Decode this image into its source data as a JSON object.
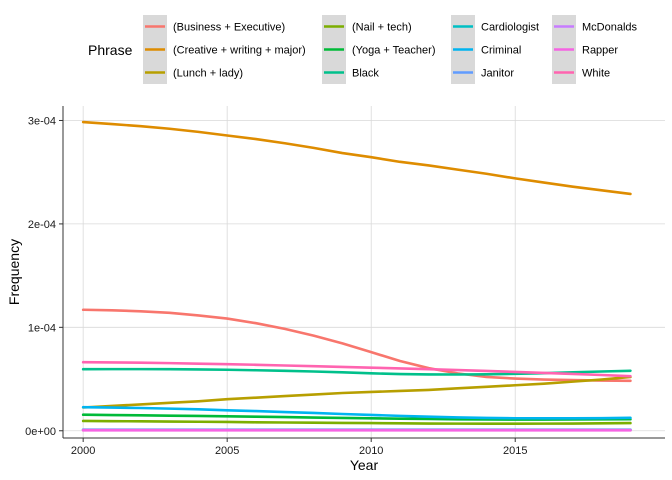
{
  "chart_data": {
    "type": "line",
    "xlabel": "Year",
    "ylabel": "Frequency",
    "legend_title": "Phrase",
    "legend_position": "top",
    "grid": true,
    "xlim": [
      1999.3,
      2020.2
    ],
    "ylim": [
      -7e-06,
      0.000314
    ],
    "x_ticks": [
      2000,
      2005,
      2010,
      2015
    ],
    "x_tick_labels": [
      "2000",
      "2005",
      "2010",
      "2015"
    ],
    "y_ticks": [
      0,
      0.0001,
      0.0002,
      0.0003
    ],
    "y_tick_labels": [
      "0e+00",
      "1e-04",
      "2e-04",
      "3e-04"
    ],
    "x": [
      2000,
      2001,
      2002,
      2003,
      2004,
      2005,
      2006,
      2007,
      2008,
      2009,
      2010,
      2011,
      2012,
      2013,
      2014,
      2015,
      2016,
      2017,
      2018,
      2019
    ],
    "series": [
      {
        "name": "(Business + Executive)",
        "color": "#F8766D",
        "values": [
          0.000117,
          0.0001165,
          0.0001155,
          0.000114,
          0.0001115,
          0.0001085,
          0.000104,
          9.85e-05,
          9.2e-05,
          8.45e-05,
          7.6e-05,
          6.75e-05,
          6.05e-05,
          5.55e-05,
          5.2e-05,
          5.05e-05,
          4.95e-05,
          4.9e-05,
          4.85e-05,
          4.83e-05
        ]
      },
      {
        "name": "(Creative + writing + major)",
        "color": "#DE8C00",
        "values": [
          0.0002985,
          0.0002965,
          0.0002945,
          0.000292,
          0.000289,
          0.0002855,
          0.000282,
          0.000278,
          0.0002735,
          0.0002685,
          0.0002645,
          0.00026,
          0.0002565,
          0.0002525,
          0.0002485,
          0.000244,
          0.00024,
          0.000236,
          0.0002325,
          0.000229
        ]
      },
      {
        "name": "(Lunch + lady)",
        "color": "#B79F00",
        "values": [
          2.25e-05,
          2.4e-05,
          2.55e-05,
          2.7e-05,
          2.85e-05,
          3.05e-05,
          3.2e-05,
          3.35e-05,
          3.5e-05,
          3.65e-05,
          3.75e-05,
          3.85e-05,
          3.95e-05,
          4.1e-05,
          4.25e-05,
          4.4e-05,
          4.55e-05,
          4.75e-05,
          4.95e-05,
          5.2e-05
        ]
      },
      {
        "name": "(Nail + tech)",
        "color": "#7CAE00",
        "values": [
          9.5e-06,
          9.3e-06,
          9.1e-06,
          8.9e-06,
          8.7e-06,
          8.5e-06,
          8.2e-06,
          8e-06,
          7.8e-06,
          7.6e-06,
          7.4e-06,
          7.2e-06,
          7e-06,
          6.9e-06,
          6.8e-06,
          6.8e-06,
          6.9e-06,
          7e-06,
          7.2e-06,
          7.4e-06
        ]
      },
      {
        "name": "(Yoga + Teacher)",
        "color": "#00BA38",
        "values": [
          1.55e-05,
          1.52e-05,
          1.49e-05,
          1.46e-05,
          1.43e-05,
          1.4e-05,
          1.36e-05,
          1.32e-05,
          1.28e-05,
          1.24e-05,
          1.2e-05,
          1.17e-05,
          1.14e-05,
          1.11e-05,
          1.09e-05,
          1.08e-05,
          1.08e-05,
          1.09e-05,
          1.1e-05,
          1.12e-05
        ]
      },
      {
        "name": "Black",
        "color": "#00C08B",
        "values": [
          5.95e-05,
          5.96e-05,
          5.96e-05,
          5.95e-05,
          5.93e-05,
          5.9e-05,
          5.85e-05,
          5.8e-05,
          5.73e-05,
          5.65e-05,
          5.55e-05,
          5.48e-05,
          5.45e-05,
          5.44e-05,
          5.46e-05,
          5.5e-05,
          5.57e-05,
          5.65e-05,
          5.73e-05,
          5.8e-05
        ]
      },
      {
        "name": "Cardiologist",
        "color": "#00BFC4",
        "values": [
          1e-06,
          1e-06,
          1e-06,
          1e-06,
          1e-06,
          1e-06,
          1e-06,
          1e-06,
          1e-06,
          1e-06,
          1e-06,
          1e-06,
          1e-06,
          1e-06,
          1e-06,
          1e-06,
          1e-06,
          1e-06,
          1e-06,
          1e-06
        ]
      },
      {
        "name": "Criminal",
        "color": "#00B4F0",
        "values": [
          2.28e-05,
          2.24e-05,
          2.2e-05,
          2.14e-05,
          2.07e-05,
          1.98e-05,
          1.9e-05,
          1.81e-05,
          1.72e-05,
          1.62e-05,
          1.53e-05,
          1.44e-05,
          1.36e-05,
          1.29e-05,
          1.24e-05,
          1.21e-05,
          1.2e-05,
          1.2e-05,
          1.22e-05,
          1.25e-05
        ]
      },
      {
        "name": "Janitor",
        "color": "#619CFF",
        "values": [
          9e-07,
          9e-07,
          9e-07,
          9e-07,
          9e-07,
          9e-07,
          9e-07,
          9e-07,
          9e-07,
          9e-07,
          9e-07,
          9e-07,
          9e-07,
          9e-07,
          9e-07,
          9e-07,
          9e-07,
          9e-07,
          9e-07,
          9e-07
        ]
      },
      {
        "name": "McDonalds",
        "color": "#C77CFF",
        "values": [
          7e-07,
          7e-07,
          7e-07,
          7e-07,
          7e-07,
          7e-07,
          7e-07,
          7e-07,
          7e-07,
          7e-07,
          7e-07,
          7e-07,
          7e-07,
          7e-07,
          7e-07,
          7e-07,
          7e-07,
          7e-07,
          7e-07,
          7e-07
        ]
      },
      {
        "name": "Rapper",
        "color": "#F564E3",
        "values": [
          4e-07,
          4e-07,
          4e-07,
          4e-07,
          4e-07,
          4e-07,
          4e-07,
          4e-07,
          4e-07,
          4e-07,
          4e-07,
          4e-07,
          4e-07,
          4e-07,
          4e-07,
          4e-07,
          4e-07,
          4e-07,
          4e-07,
          4e-07
        ]
      },
      {
        "name": "White",
        "color": "#FF64B0",
        "values": [
          6.63e-05,
          6.61e-05,
          6.58e-05,
          6.54e-05,
          6.49e-05,
          6.44e-05,
          6.38e-05,
          6.31e-05,
          6.24e-05,
          6.17e-05,
          6.1e-05,
          6.03e-05,
          5.95e-05,
          5.87e-05,
          5.78e-05,
          5.69e-05,
          5.59e-05,
          5.49e-05,
          5.39e-05,
          5.28e-05
        ]
      }
    ]
  }
}
